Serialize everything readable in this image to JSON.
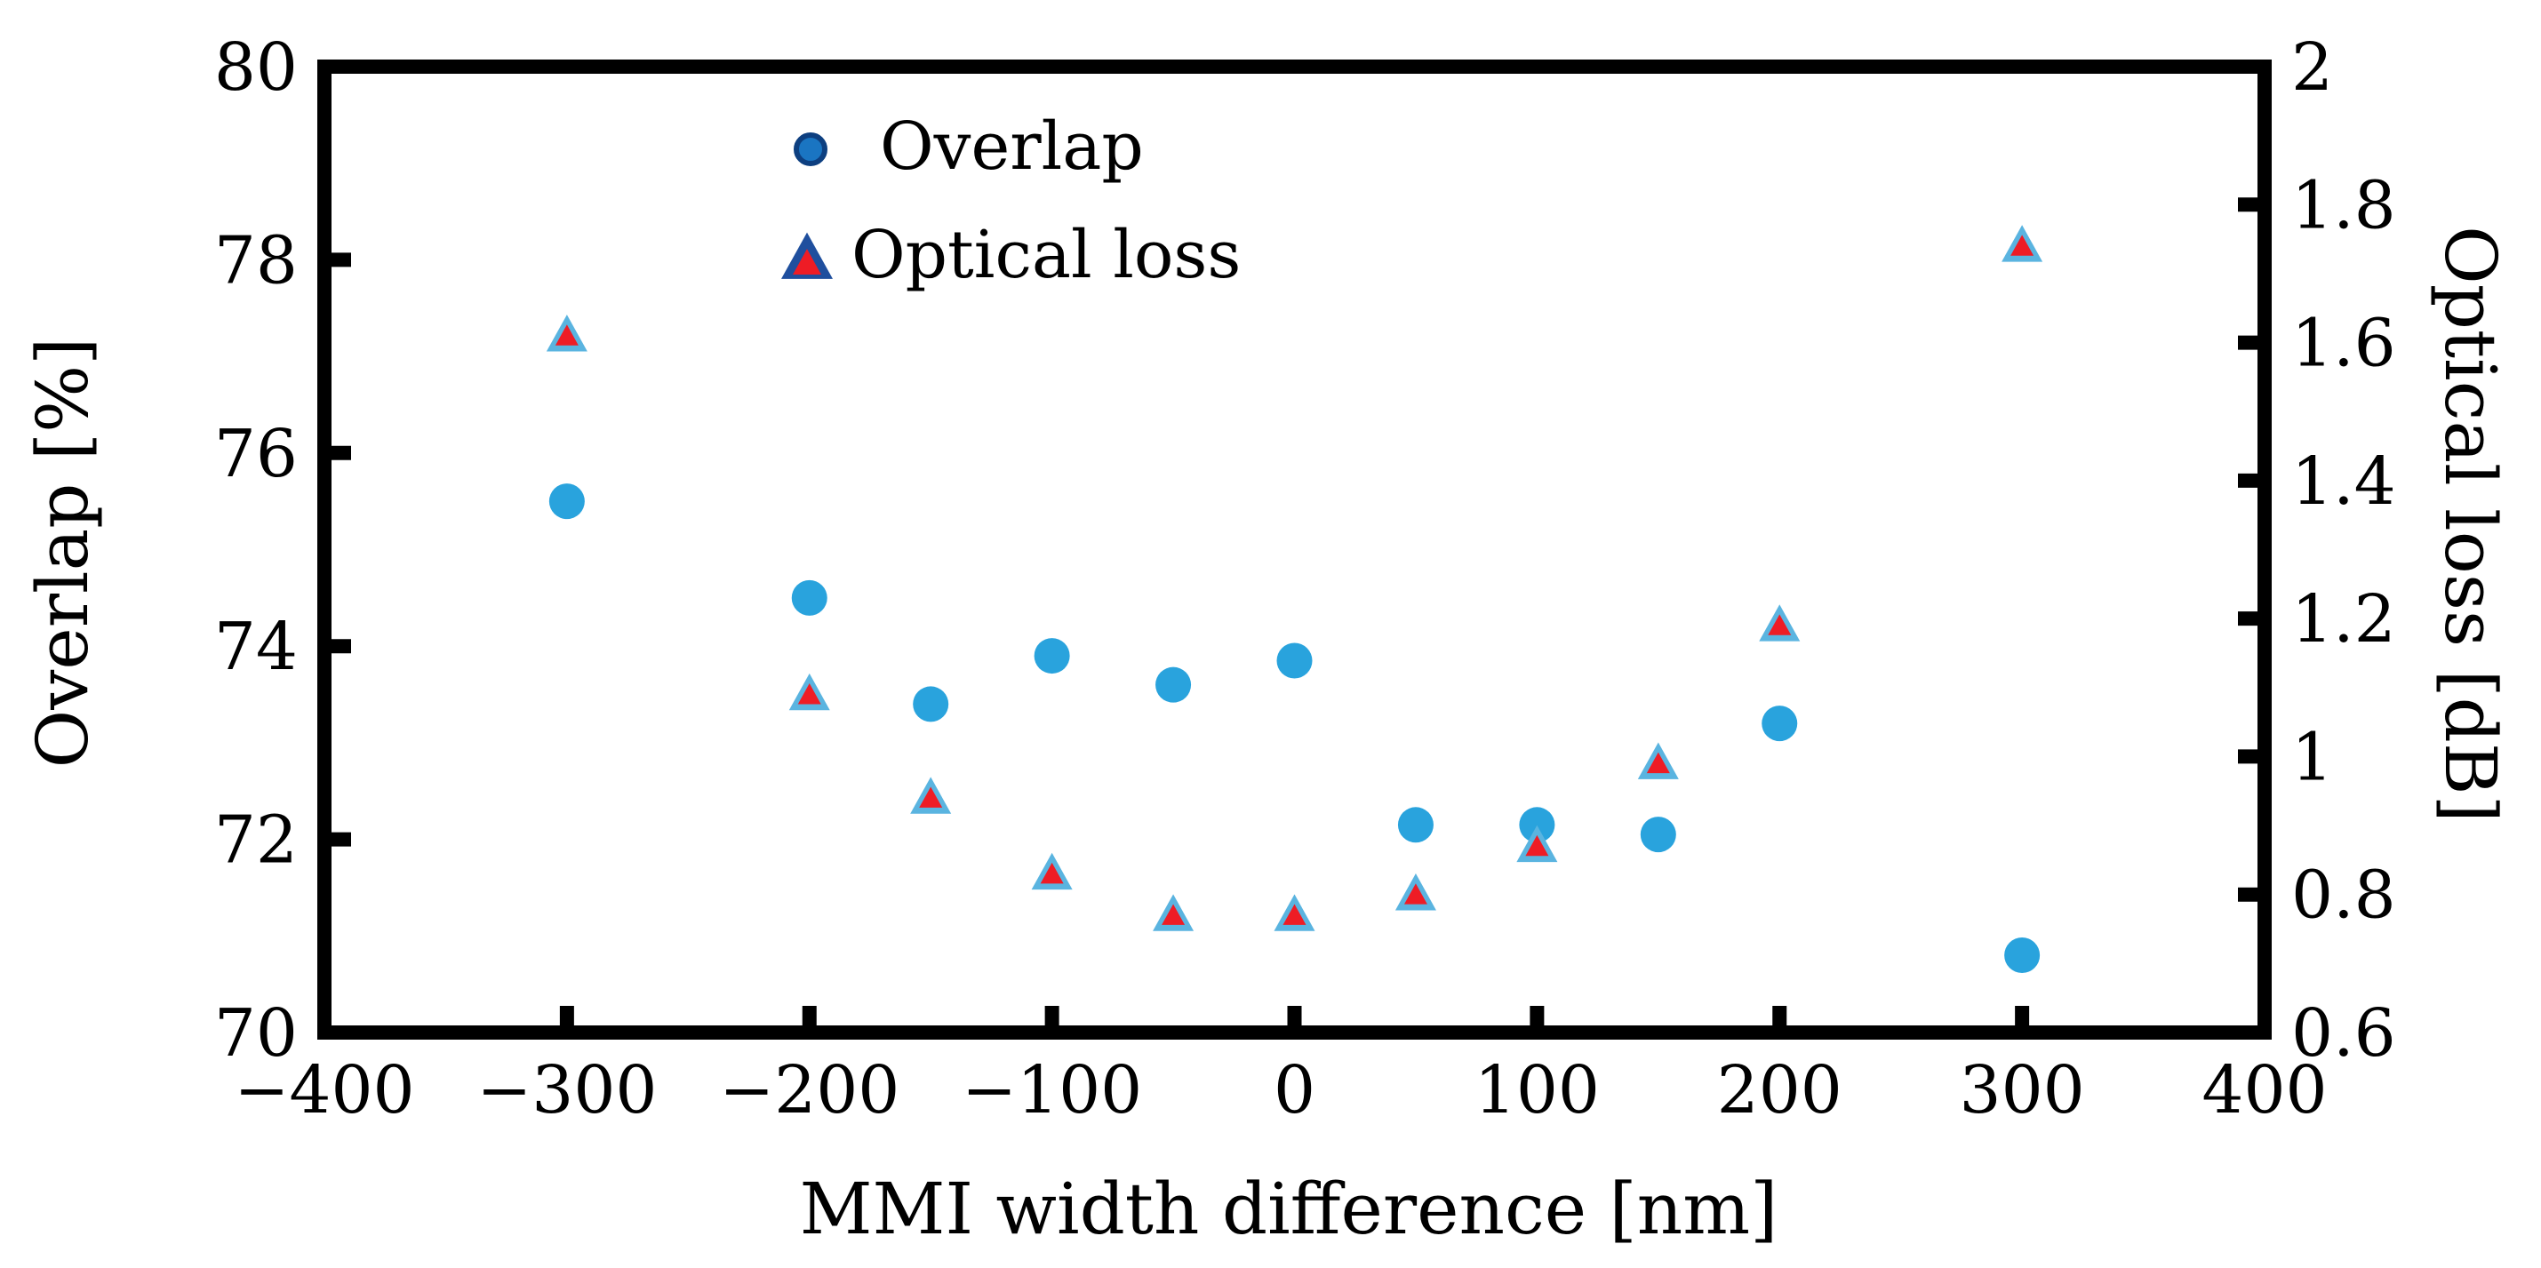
{
  "chart_data": {
    "type": "scatter",
    "title": "",
    "xlabel": "MMI width difference [nm]",
    "ylabel_left": "Overlap [%]",
    "ylabel_right": "Optical loss [dB]",
    "xlim": [
      -400,
      400
    ],
    "ylim_left": [
      70,
      80
    ],
    "ylim_right": [
      0.6,
      2.0
    ],
    "x_ticks": [
      -400,
      -300,
      -200,
      -100,
      0,
      100,
      200,
      300,
      400
    ],
    "x_tick_labels": [
      "−400",
      "−300",
      "−200",
      "−100",
      "0",
      "100",
      "200",
      "300",
      "400"
    ],
    "y_left_ticks": [
      70,
      72,
      74,
      76,
      78,
      80
    ],
    "y_left_tick_labels": [
      "70",
      "72",
      "74",
      "76",
      "78",
      "80"
    ],
    "y_right_ticks": [
      0.6,
      0.8,
      1.0,
      1.2,
      1.4,
      1.6,
      1.8,
      2.0
    ],
    "y_right_tick_labels": [
      "0.6",
      "0.8",
      "1",
      "1.2",
      "1.4",
      "1.6",
      "1.8",
      "2"
    ],
    "grid": false,
    "legend_position": "top-left",
    "series": [
      {
        "name": "Overlap",
        "axis": "left",
        "marker": "circle",
        "color": "#29a3dd",
        "legend_fill": "#1a75c2",
        "legend_stroke": "#0d3f80",
        "x": [
          -300,
          -200,
          -150,
          -100,
          -50,
          0,
          50,
          100,
          150,
          200,
          300
        ],
        "y": [
          75.5,
          74.5,
          73.4,
          73.9,
          73.6,
          73.85,
          72.15,
          72.15,
          72.05,
          73.2,
          70.8
        ]
      },
      {
        "name": "Optical loss",
        "axis": "right",
        "marker": "triangle",
        "color": "#ee1c25",
        "edge_color": "#5ab4e0",
        "legend_stroke": "#1f4f9e",
        "x": [
          -300,
          -200,
          -150,
          -100,
          -50,
          0,
          50,
          100,
          150,
          200,
          300
        ],
        "y": [
          1.61,
          1.09,
          0.94,
          0.83,
          0.77,
          0.77,
          0.8,
          0.87,
          0.99,
          1.19,
          1.74
        ]
      }
    ]
  }
}
